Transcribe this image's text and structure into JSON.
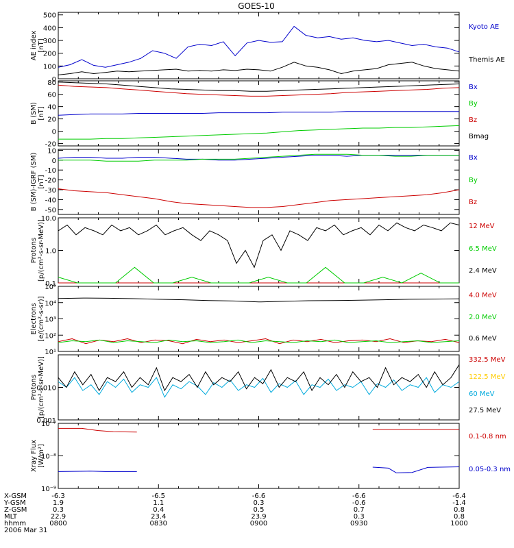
{
  "title": "GOES-10",
  "chart_data": [
    {
      "type": "line",
      "ylabel": [
        "AE index",
        "[nT]"
      ],
      "ylim": [
        0,
        520
      ],
      "scale": "linear",
      "yticks": [
        0,
        100,
        200,
        300,
        400,
        500
      ],
      "ytick_labels": [
        "0",
        "100",
        "200",
        "300",
        "400",
        "500"
      ],
      "series": [
        {
          "name": "Kyoto AE",
          "color": "#0000cc",
          "values": [
            90,
            110,
            150,
            105,
            90,
            110,
            130,
            160,
            220,
            200,
            160,
            250,
            270,
            260,
            290,
            180,
            280,
            300,
            285,
            290,
            410,
            340,
            320,
            330,
            310,
            320,
            300,
            290,
            300,
            280,
            260,
            270,
            250,
            240,
            210
          ]
        },
        {
          "name": "Themis AE",
          "color": "#000000",
          "values": [
            30,
            40,
            55,
            40,
            50,
            60,
            55,
            60,
            65,
            70,
            75,
            60,
            65,
            60,
            70,
            65,
            75,
            70,
            60,
            90,
            130,
            100,
            90,
            70,
            40,
            60,
            70,
            80,
            110,
            120,
            130,
            100,
            80,
            70,
            60
          ]
        }
      ]
    },
    {
      "type": "line",
      "ylabel": [
        "B (SM)",
        "[nT]"
      ],
      "ylim": [
        -24,
        82
      ],
      "scale": "linear",
      "yticks": [
        -20,
        0,
        20,
        40,
        60,
        80
      ],
      "ytick_labels": [
        "-20",
        "0",
        "20",
        "40",
        "60",
        "80"
      ],
      "series": [
        {
          "name": "Bx",
          "color": "#0000cc",
          "values": [
            26,
            27,
            28,
            28,
            28,
            29,
            29,
            29,
            29,
            29,
            30,
            30,
            30,
            30,
            31,
            31,
            31,
            31,
            32,
            32,
            32,
            32,
            32,
            32,
            32,
            32
          ]
        },
        {
          "name": "By",
          "color": "#00cc00",
          "values": [
            -13,
            -13,
            -13,
            -12,
            -12,
            -11,
            -10,
            -9,
            -8,
            -7,
            -6,
            -5,
            -4,
            -3,
            -1,
            1,
            2,
            3,
            4,
            5,
            5,
            6,
            6,
            7,
            8,
            9
          ]
        },
        {
          "name": "Bz",
          "color": "#cc0000",
          "values": [
            75,
            73,
            72,
            71,
            69,
            67,
            65,
            63,
            61,
            60,
            59,
            58,
            57,
            57,
            58,
            59,
            60,
            61,
            63,
            64,
            65,
            66,
            67,
            68,
            70,
            71
          ]
        },
        {
          "name": "Bmag",
          "color": "#000000",
          "values": [
            80,
            79,
            78,
            77,
            75,
            73,
            71,
            69,
            68,
            67,
            66,
            66,
            65,
            65,
            66,
            67,
            68,
            69,
            70,
            71,
            72,
            73,
            74,
            75,
            76,
            77
          ]
        }
      ]
    },
    {
      "type": "line",
      "ylabel": [
        "B (SM)-IGRF (SM)",
        "[nT]"
      ],
      "ylim": [
        -55,
        11
      ],
      "scale": "linear",
      "yticks": [
        -50,
        -40,
        -30,
        -20,
        -10,
        0,
        10
      ],
      "ytick_labels": [
        "-50",
        "-40",
        "-30",
        "-20",
        "-10",
        "0",
        "10"
      ],
      "series": [
        {
          "name": "Bx",
          "color": "#0000cc",
          "values": [
            2,
            3,
            3,
            2,
            2,
            3,
            3,
            2,
            1,
            1,
            0,
            0,
            1,
            2,
            3,
            4,
            5,
            5,
            4,
            5,
            5,
            5,
            5,
            5,
            5,
            5
          ]
        },
        {
          "name": "By",
          "color": "#00cc00",
          "values": [
            0,
            0,
            0,
            -1,
            -1,
            -1,
            0,
            0,
            0,
            1,
            1,
            1,
            2,
            3,
            4,
            5,
            6,
            6,
            6,
            5,
            5,
            4,
            4,
            5,
            5,
            5
          ]
        },
        {
          "name": "Bz",
          "color": "#cc0000",
          "values": [
            -29,
            -31,
            -32,
            -33,
            -35,
            -37,
            -39,
            -42,
            -44,
            -45,
            -46,
            -47,
            -48,
            -48,
            -47,
            -45,
            -43,
            -41,
            -40,
            -39,
            -38,
            -37,
            -36,
            -35,
            -33,
            -30
          ]
        }
      ]
    },
    {
      "type": "line",
      "ylabel": [
        "Protons",
        "[p/(cm²-s-sr-MeV)]"
      ],
      "ylim": [
        0.1,
        10.0
      ],
      "scale": "log",
      "yticks": [
        0.1,
        1.0,
        10.0
      ],
      "ytick_labels": [
        "0.1",
        "1.0",
        "10.0"
      ],
      "series": [
        {
          "name": "12 MeV",
          "color": "#cc0000",
          "values": [
            0.1,
            0.1,
            0.1,
            0.1
          ]
        },
        {
          "name": "6.5 MeV",
          "color": "#00cc00",
          "values": [
            0.15,
            0.1,
            0.1,
            0.1,
            0.3,
            0.1,
            0.1,
            0.15,
            0.1,
            0.1,
            0.1,
            0.15,
            0.1,
            0.1,
            0.3,
            0.1,
            0.1,
            0.15,
            0.1,
            0.2,
            0.1,
            0.1
          ]
        },
        {
          "name": "2.4 MeV",
          "color": "#000000",
          "values": [
            4,
            6,
            3,
            5,
            4,
            3,
            6,
            4,
            5,
            3,
            4,
            6,
            3,
            4,
            5,
            3,
            2,
            4,
            3,
            2,
            0.4,
            1,
            0.3,
            2,
            3,
            1,
            4,
            3,
            2,
            5,
            4,
            6,
            3,
            4,
            5,
            3,
            6,
            4,
            7,
            5,
            4,
            6,
            5,
            4,
            7,
            6
          ]
        }
      ]
    },
    {
      "type": "line",
      "ylabel": [
        "Electrons",
        "[e/(cm²-s-sr)]"
      ],
      "ylim": [
        10,
        100000
      ],
      "scale": "log",
      "yticks": [
        10,
        100,
        1000,
        10000,
        100000
      ],
      "ytick_labels": [
        "10¹",
        "10²",
        "10³",
        "10⁴",
        "10⁵"
      ],
      "series": [
        {
          "name": "4.0 MeV",
          "color": "#cc0000",
          "values": [
            40,
            60,
            30,
            50,
            40,
            60,
            35,
            50,
            45,
            30,
            55,
            40,
            50,
            35,
            45,
            60,
            30,
            50,
            40,
            55,
            35,
            45,
            50,
            40,
            60,
            35,
            45,
            40,
            55,
            35
          ]
        },
        {
          "name": "2.0 MeV",
          "color": "#00cc00",
          "values": [
            35,
            45,
            40,
            50,
            35,
            45,
            40,
            35,
            50,
            40,
            45,
            35,
            40,
            50,
            35,
            45,
            40,
            35,
            45,
            40,
            50,
            35,
            40,
            45,
            35,
            40,
            45,
            35,
            40,
            45
          ]
        },
        {
          "name": "0.6 MeV",
          "color": "#000000",
          "values": [
            18000,
            19000,
            18500,
            17500,
            16000,
            15000,
            13500,
            12500,
            11000,
            12000,
            13000,
            13500,
            14000,
            15000,
            16000,
            16500,
            17000
          ]
        }
      ]
    },
    {
      "type": "line",
      "ylabel": [
        "Protons",
        "[p/(cm²-s-sr-MeV)]"
      ],
      "ylim": [
        0.001,
        0.1
      ],
      "scale": "log",
      "yticks": [
        0.001,
        0.01
      ],
      "ytick_labels": [
        "0.001",
        "0.010"
      ],
      "series": [
        {
          "name": "332.5 MeV",
          "color": "#cc0000",
          "values": []
        },
        {
          "name": "122.5 MeV",
          "color": "#ffcc00",
          "values": []
        },
        {
          "name": "60 MeV",
          "color": "#00aadd",
          "values": [
            0.015,
            0.01,
            0.02,
            0.008,
            0.012,
            0.006,
            0.015,
            0.01,
            0.018,
            0.007,
            0.012,
            0.01,
            0.02,
            0.005,
            0.012,
            0.009,
            0.015,
            0.011,
            0.006,
            0.014,
            0.01,
            0.017,
            0.008,
            0.012,
            0.01,
            0.019,
            0.007,
            0.013,
            0.01,
            0.016,
            0.006,
            0.012,
            0.01,
            0.018,
            0.008,
            0.012,
            0.01,
            0.015,
            0.006,
            0.013,
            0.01,
            0.017,
            0.008,
            0.012,
            0.01,
            0.02,
            0.007,
            0.012,
            0.01,
            0.015
          ]
        },
        {
          "name": "27.5 MeV",
          "color": "#000000",
          "values": [
            0.02,
            0.01,
            0.03,
            0.012,
            0.025,
            0.008,
            0.02,
            0.015,
            0.03,
            0.01,
            0.02,
            0.012,
            0.04,
            0.008,
            0.02,
            0.015,
            0.025,
            0.01,
            0.03,
            0.012,
            0.02,
            0.015,
            0.03,
            0.009,
            0.02,
            0.013,
            0.035,
            0.01,
            0.02,
            0.015,
            0.03,
            0.008,
            0.02,
            0.012,
            0.025,
            0.01,
            0.03,
            0.015,
            0.02,
            0.01,
            0.04,
            0.012,
            0.02,
            0.015,
            0.025,
            0.01,
            0.03,
            0.012,
            0.02,
            0.05
          ]
        }
      ]
    },
    {
      "type": "line",
      "ylabel": [
        "Xray Flux",
        "[W/m²]"
      ],
      "ylim": [
        1e-09,
        1e-07
      ],
      "scale": "log",
      "yticks": [
        1e-09,
        1e-08,
        1e-07
      ],
      "ytick_labels": [
        "10⁻⁹",
        "10⁻⁸",
        "10⁻⁷"
      ],
      "series": [
        {
          "name": "0.1-0.8 nm",
          "color": "#cc0000",
          "segments": [
            [
              [
                0,
                7e-08
              ],
              [
                3,
                7e-08
              ],
              [
                5,
                6e-08
              ],
              [
                7,
                5.5e-08
              ],
              [
                10,
                5.4e-08
              ]
            ],
            [
              [
                40,
                6.5e-08
              ],
              [
                45,
                6.5e-08
              ],
              [
                51,
                6.5e-08
              ]
            ]
          ]
        },
        {
          "name": "0.05-0.3 nm",
          "color": "#0000cc",
          "segments": [
            [
              [
                0,
                3.3e-09
              ],
              [
                4,
                3.4e-09
              ],
              [
                6,
                3.3e-09
              ],
              [
                10,
                3.3e-09
              ]
            ],
            [
              [
                40,
                4.5e-09
              ],
              [
                42,
                4.2e-09
              ],
              [
                43,
                3e-09
              ],
              [
                45,
                3.1e-09
              ],
              [
                47,
                4.4e-09
              ],
              [
                51,
                4.6e-09
              ]
            ]
          ]
        }
      ]
    }
  ],
  "ephemeris": {
    "row_labels": [
      "X-GSM",
      "Y-GSM",
      "Z-GSM",
      "MLT",
      "hhmm",
      "2006 Mar 31"
    ],
    "columns": [
      [
        "-6.3",
        "1.9",
        "0.3",
        "22.9",
        "0800"
      ],
      [
        "-6.5",
        "1.1",
        "0.4",
        "23.4",
        "0830"
      ],
      [
        "-6.6",
        "0.3",
        "0.5",
        "23.9",
        "0900"
      ],
      [
        "-6.6",
        "-0.6",
        "0.7",
        "0.3",
        "0930"
      ],
      [
        "-6.4",
        "-1.4",
        "0.8",
        "0.8",
        "1000"
      ]
    ]
  }
}
